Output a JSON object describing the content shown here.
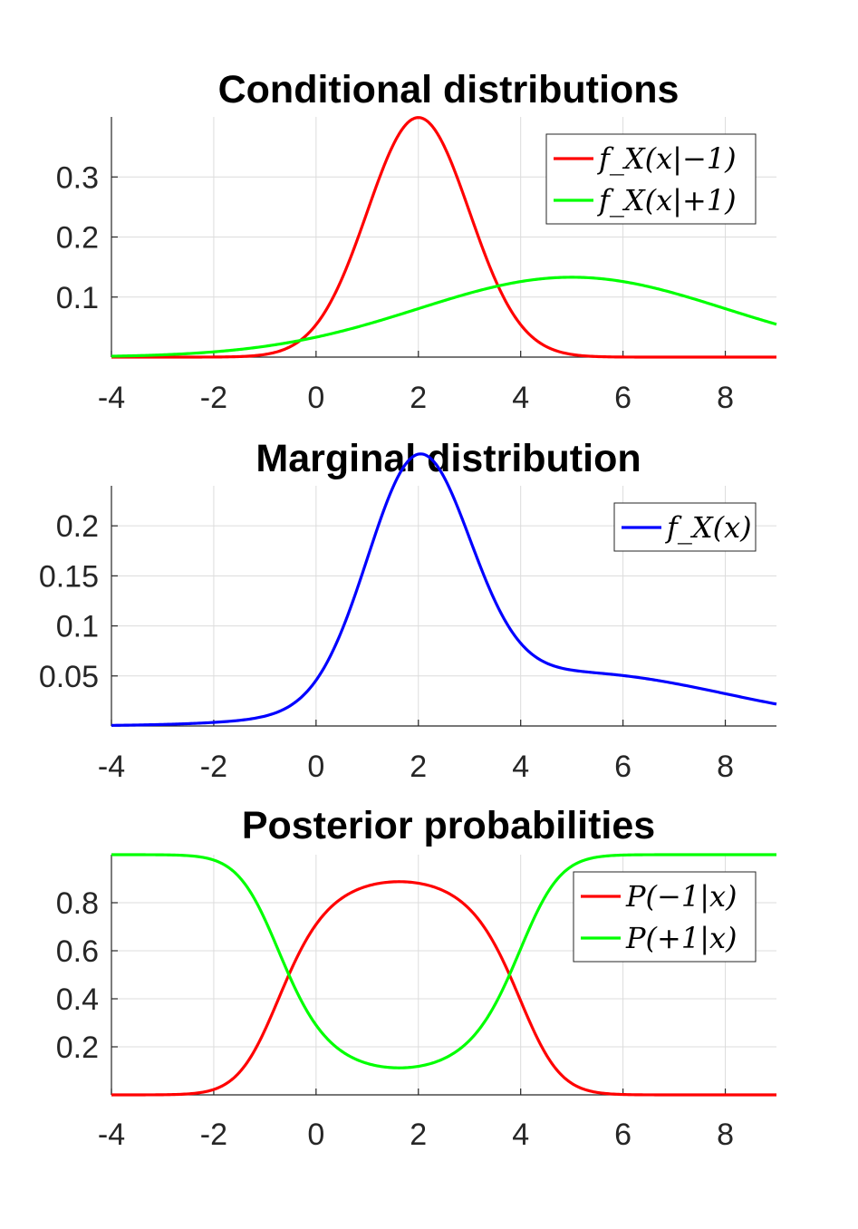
{
  "chart_data": [
    {
      "type": "line",
      "title": "Conditional distributions",
      "xlim": [
        -4,
        9
      ],
      "ylim": [
        0,
        0.4
      ],
      "grid": true,
      "xticks": [
        "-4",
        "-2",
        "0",
        "2",
        "4",
        "6",
        "8"
      ],
      "yticks": [
        "0.1",
        "0.2",
        "0.3"
      ],
      "legend_position": "top-right",
      "series": [
        {
          "name": "f_X(x|-1)",
          "label": "f_X(x|−1)",
          "color": "#ff0000",
          "distribution": "normal",
          "mean": 2,
          "std": 1
        },
        {
          "name": "f_X(x|+1)",
          "label": "f_X(x|+1)",
          "color": "#00ff00",
          "distribution": "normal",
          "mean": 5,
          "std": 3
        }
      ]
    },
    {
      "type": "line",
      "title": "Marginal distribution",
      "xlim": [
        -4,
        9
      ],
      "ylim": [
        0,
        0.24
      ],
      "grid": true,
      "xticks": [
        "-4",
        "-2",
        "0",
        "2",
        "4",
        "6",
        "8"
      ],
      "yticks": [
        "0.05",
        "0.1",
        "0.15",
        "0.2"
      ],
      "legend_position": "top-right",
      "series": [
        {
          "name": "f_X(x)",
          "label": "f_X(x)",
          "color": "#0000ff",
          "formula": "0.6*f_X(x|-1) + 0.4*f_X(x|+1)"
        }
      ]
    },
    {
      "type": "line",
      "title": "Posterior probabilities",
      "xlim": [
        -4,
        9
      ],
      "ylim": [
        0,
        1
      ],
      "grid": true,
      "xticks": [
        "-4",
        "-2",
        "0",
        "2",
        "4",
        "6",
        "8"
      ],
      "yticks": [
        "0.2",
        "0.4",
        "0.6",
        "0.8"
      ],
      "legend_position": "top-right",
      "series": [
        {
          "name": "P(-1|x)",
          "label": "P(−1|x)",
          "color": "#ff0000",
          "formula": "0.6*f_X(x|-1) / f_X(x)"
        },
        {
          "name": "P(+1|x)",
          "label": "P(+1|x)",
          "color": "#00ff00",
          "formula": "0.4*f_X(x|+1) / f_X(x)"
        }
      ]
    }
  ]
}
